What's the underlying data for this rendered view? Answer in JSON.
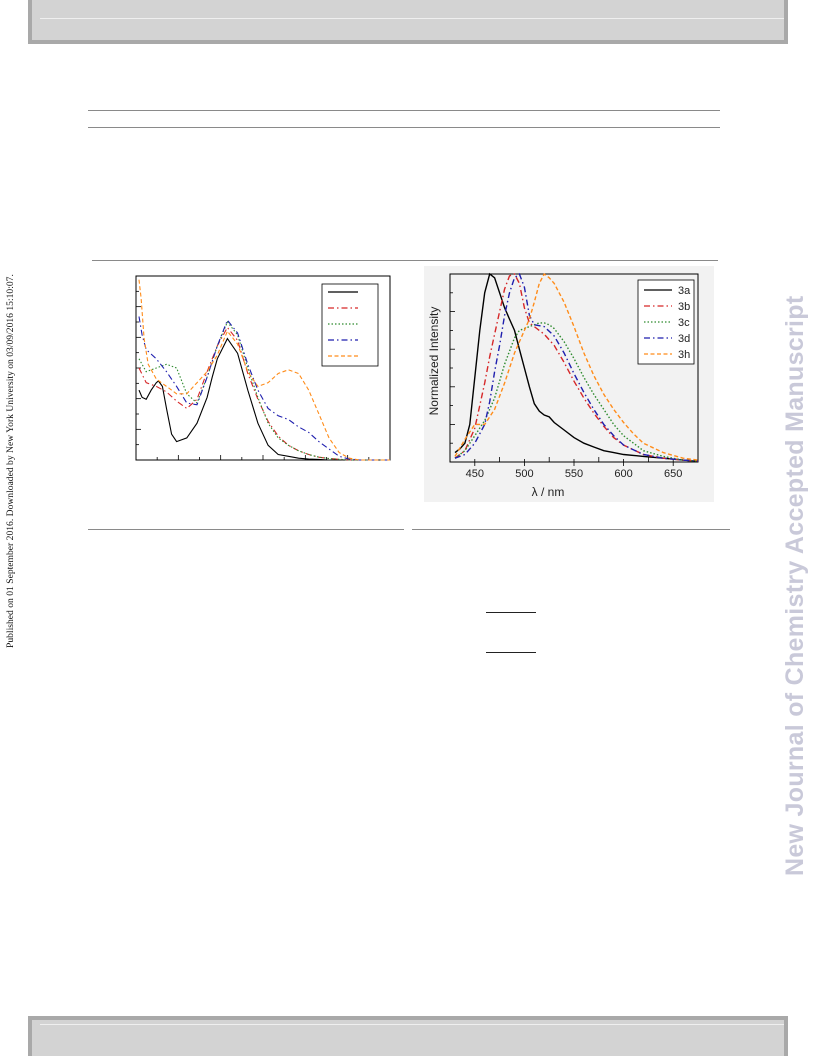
{
  "side_note": "Published on 01 September 2016. Downloaded by New York University on 03/09/2016 15:10:07.",
  "watermark": "New Journal of Chemistry Accepted Manuscript",
  "chart_data": [
    {
      "type": "line",
      "title": "",
      "xlabel": "",
      "ylabel": "",
      "xlim": [
        270,
        520
      ],
      "ylim": [
        0,
        1.0
      ],
      "x_tick_labels": [],
      "y_tick_labels": [],
      "legend_placement": "top-right",
      "series": [
        {
          "color": "#000000",
          "dash": "solid",
          "x": [
            273,
            276,
            280,
            285,
            290,
            292,
            296,
            300,
            305,
            310,
            320,
            330,
            340,
            345,
            350,
            360,
            370,
            380,
            390,
            400,
            410,
            420,
            430,
            440,
            450,
            460,
            470,
            480,
            490,
            500,
            510,
            520
          ],
          "y": [
            0.38,
            0.34,
            0.33,
            0.38,
            0.42,
            0.43,
            0.4,
            0.28,
            0.14,
            0.1,
            0.12,
            0.2,
            0.34,
            0.45,
            0.55,
            0.66,
            0.58,
            0.38,
            0.2,
            0.08,
            0.03,
            0.02,
            0.01,
            0.005,
            0.003,
            0,
            0,
            0,
            0,
            0,
            0,
            0
          ]
        },
        {
          "color": "#d62728",
          "dash": "6,3,1.5,3",
          "x": [
            273,
            280,
            290,
            300,
            310,
            320,
            330,
            340,
            350,
            360,
            370,
            380,
            390,
            400,
            410,
            420,
            430,
            440,
            450,
            460,
            470,
            480,
            490,
            500,
            510,
            520
          ],
          "y": [
            0.5,
            0.42,
            0.4,
            0.37,
            0.32,
            0.28,
            0.33,
            0.48,
            0.62,
            0.72,
            0.65,
            0.47,
            0.33,
            0.21,
            0.13,
            0.08,
            0.05,
            0.03,
            0.015,
            0.008,
            0.004,
            0,
            0,
            0,
            0,
            0
          ]
        },
        {
          "color": "#2e8b2e",
          "dash": "1.5,2",
          "x": [
            273,
            280,
            290,
            300,
            310,
            320,
            330,
            340,
            350,
            360,
            370,
            380,
            390,
            400,
            410,
            420,
            430,
            440,
            450,
            460,
            470,
            480,
            490,
            500,
            510,
            520
          ],
          "y": [
            0.55,
            0.48,
            0.5,
            0.52,
            0.5,
            0.36,
            0.31,
            0.45,
            0.62,
            0.75,
            0.68,
            0.5,
            0.34,
            0.2,
            0.12,
            0.08,
            0.05,
            0.03,
            0.015,
            0.008,
            0.004,
            0,
            0,
            0,
            0,
            0
          ]
        },
        {
          "color": "#1f1fae",
          "dash": "6,3,1.5,3",
          "x": [
            273,
            276,
            280,
            290,
            300,
            310,
            320,
            330,
            340,
            350,
            360,
            370,
            380,
            390,
            400,
            410,
            420,
            430,
            440,
            450,
            460,
            470,
            480,
            490,
            500,
            510,
            520
          ],
          "y": [
            0.78,
            0.68,
            0.6,
            0.55,
            0.48,
            0.4,
            0.31,
            0.3,
            0.45,
            0.62,
            0.76,
            0.69,
            0.52,
            0.38,
            0.28,
            0.24,
            0.22,
            0.18,
            0.15,
            0.1,
            0.06,
            0.02,
            0.005,
            0,
            0,
            0,
            0
          ]
        },
        {
          "color": "#ff8c1a",
          "dash": "4,2.5",
          "x": [
            273,
            275,
            278,
            282,
            290,
            300,
            310,
            320,
            330,
            340,
            350,
            360,
            370,
            380,
            390,
            400,
            410,
            420,
            430,
            440,
            450,
            460,
            470,
            480,
            490,
            500,
            510,
            520
          ],
          "y": [
            0.98,
            0.88,
            0.66,
            0.52,
            0.44,
            0.4,
            0.36,
            0.36,
            0.42,
            0.48,
            0.57,
            0.7,
            0.63,
            0.48,
            0.4,
            0.42,
            0.47,
            0.49,
            0.47,
            0.38,
            0.25,
            0.12,
            0.04,
            0.01,
            0,
            0,
            0,
            0
          ]
        }
      ]
    },
    {
      "type": "line",
      "title": "",
      "xlabel": "λ / nm",
      "ylabel": "Normalized Intensity",
      "xlim": [
        425,
        675
      ],
      "ylim": [
        0,
        1.0
      ],
      "x_ticks": [
        450,
        500,
        550,
        600,
        650
      ],
      "x_tick_labels": [
        "450",
        "500",
        "550",
        "600",
        "650"
      ],
      "legend_placement": "top-right",
      "series": [
        {
          "name": "3a",
          "color": "#000000",
          "dash": "solid",
          "x": [
            430,
            435,
            440,
            445,
            450,
            455,
            460,
            465,
            470,
            475,
            480,
            485,
            490,
            495,
            500,
            505,
            510,
            515,
            520,
            525,
            530,
            540,
            550,
            560,
            570,
            580,
            590,
            600,
            620,
            640,
            660,
            675
          ],
          "y": [
            0.05,
            0.07,
            0.1,
            0.2,
            0.45,
            0.7,
            0.9,
            1.0,
            0.98,
            0.9,
            0.82,
            0.76,
            0.7,
            0.6,
            0.5,
            0.4,
            0.31,
            0.27,
            0.25,
            0.24,
            0.21,
            0.17,
            0.13,
            0.1,
            0.08,
            0.06,
            0.05,
            0.04,
            0.03,
            0.02,
            0.01,
            0.005
          ]
        },
        {
          "name": "3b",
          "color": "#d62728",
          "dash": "6,3,1.5,3",
          "x": [
            430,
            440,
            450,
            460,
            465,
            470,
            475,
            480,
            485,
            490,
            495,
            500,
            505,
            510,
            520,
            530,
            540,
            550,
            560,
            570,
            580,
            590,
            600,
            620,
            640,
            660,
            675
          ],
          "y": [
            0.02,
            0.06,
            0.18,
            0.42,
            0.56,
            0.68,
            0.8,
            0.92,
            0.99,
            1.0,
            0.95,
            0.82,
            0.74,
            0.72,
            0.68,
            0.62,
            0.53,
            0.43,
            0.34,
            0.26,
            0.19,
            0.13,
            0.09,
            0.04,
            0.02,
            0.01,
            0.005
          ]
        },
        {
          "name": "3c",
          "color": "#2e8b2e",
          "dash": "1.5,2",
          "x": [
            430,
            440,
            450,
            460,
            470,
            480,
            490,
            495,
            500,
            505,
            510,
            515,
            520,
            525,
            530,
            540,
            550,
            560,
            570,
            580,
            590,
            600,
            620,
            640,
            660,
            675
          ],
          "y": [
            0.02,
            0.06,
            0.14,
            0.22,
            0.34,
            0.52,
            0.66,
            0.7,
            0.71,
            0.72,
            0.73,
            0.74,
            0.74,
            0.73,
            0.71,
            0.64,
            0.55,
            0.45,
            0.36,
            0.28,
            0.2,
            0.14,
            0.06,
            0.03,
            0.01,
            0.005
          ]
        },
        {
          "name": "3d",
          "color": "#1f1fae",
          "dash": "6,3,1.5,3",
          "x": [
            430,
            440,
            450,
            460,
            465,
            470,
            475,
            480,
            485,
            490,
            495,
            500,
            505,
            510,
            520,
            530,
            540,
            550,
            560,
            570,
            580,
            590,
            600,
            620,
            640,
            660,
            675
          ],
          "y": [
            0.02,
            0.04,
            0.1,
            0.2,
            0.32,
            0.48,
            0.62,
            0.78,
            0.9,
            0.98,
            1.0,
            0.93,
            0.78,
            0.73,
            0.72,
            0.67,
            0.58,
            0.47,
            0.37,
            0.28,
            0.2,
            0.14,
            0.09,
            0.04,
            0.02,
            0.01,
            0.005
          ]
        },
        {
          "name": "3h",
          "color": "#ff8c1a",
          "dash": "4,2.5",
          "x": [
            430,
            440,
            450,
            460,
            470,
            480,
            490,
            500,
            505,
            510,
            515,
            520,
            525,
            530,
            540,
            550,
            560,
            570,
            580,
            590,
            600,
            610,
            620,
            640,
            660,
            675
          ],
          "y": [
            0.03,
            0.12,
            0.2,
            0.2,
            0.28,
            0.42,
            0.58,
            0.7,
            0.76,
            0.85,
            0.95,
            1.0,
            0.98,
            0.95,
            0.85,
            0.72,
            0.58,
            0.46,
            0.36,
            0.28,
            0.21,
            0.15,
            0.1,
            0.05,
            0.02,
            0.01
          ]
        }
      ]
    }
  ]
}
